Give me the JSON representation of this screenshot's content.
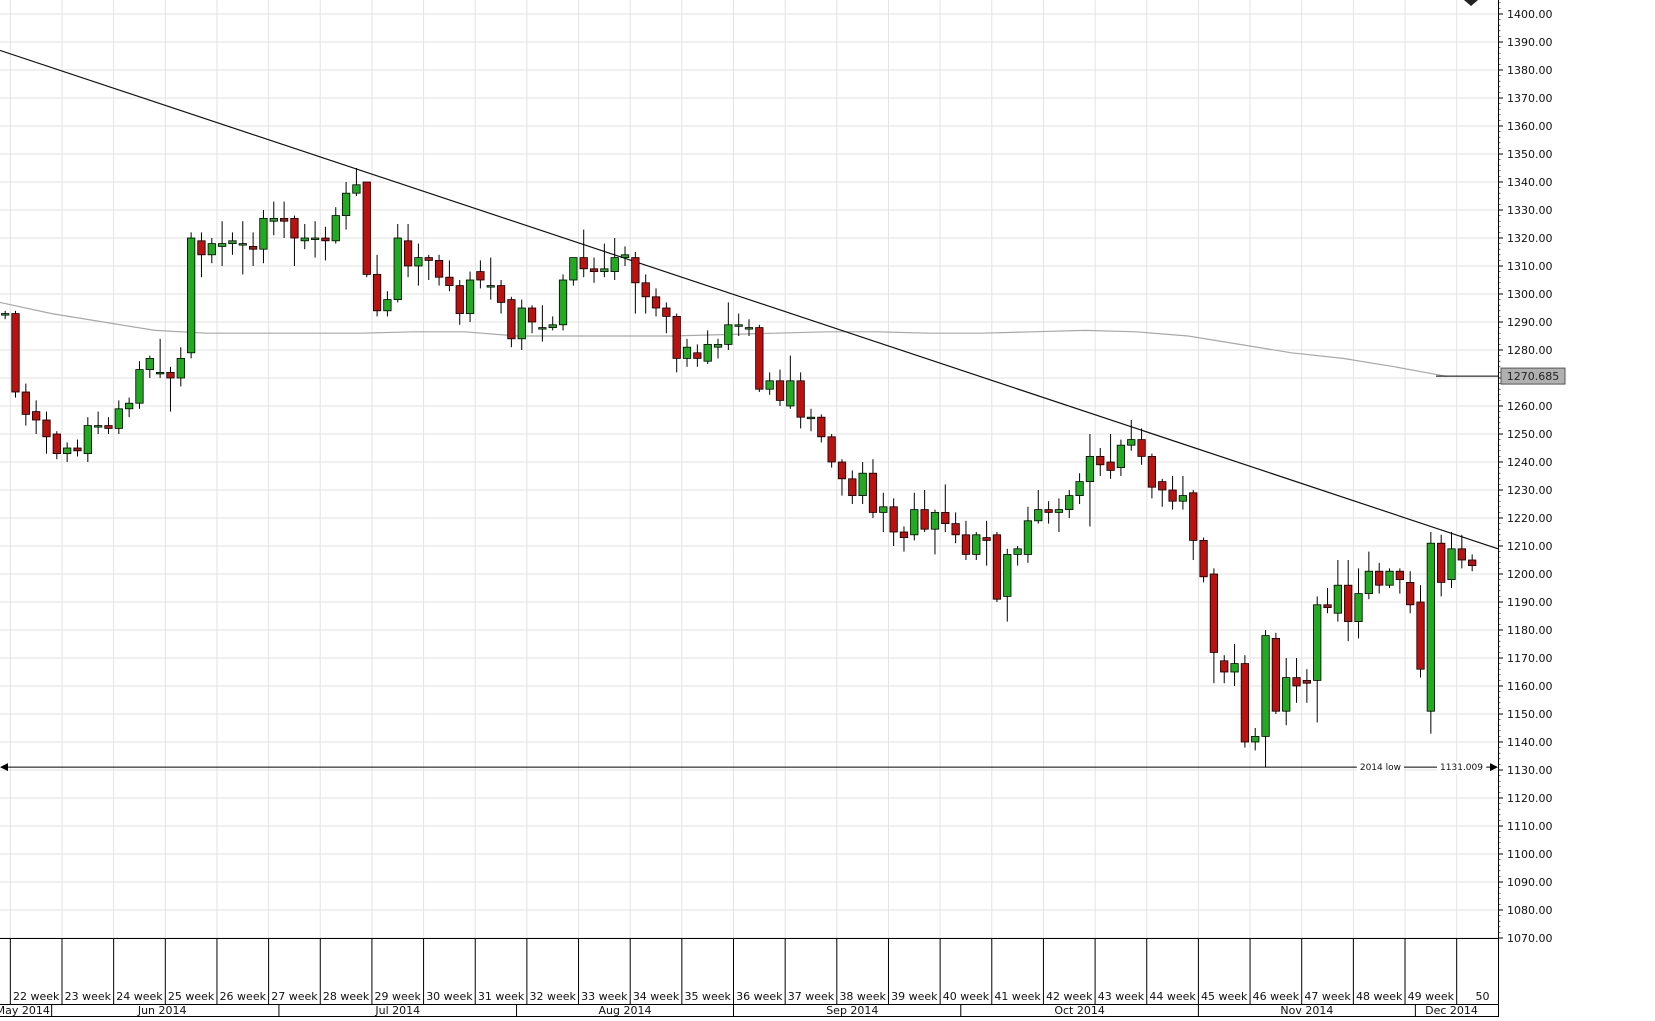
{
  "colors": {
    "background": "#ffffff",
    "grid": "#e3e3e3",
    "bull": "#22aa22",
    "bear": "#bb1111",
    "wick": "#000000",
    "trendline": "#111111",
    "moving_average": "#a8a8a8",
    "price_badge_bg": "#b0b0b0"
  },
  "chart_data": {
    "type": "candlestick",
    "timeframe": "weekly",
    "ylim": [
      1070,
      1405
    ],
    "y_ticks": [
      1070,
      1080,
      1090,
      1100,
      1110,
      1120,
      1130,
      1140,
      1150,
      1160,
      1170,
      1180,
      1190,
      1200,
      1210,
      1220,
      1230,
      1240,
      1250,
      1260,
      1270,
      1280,
      1290,
      1300,
      1310,
      1320,
      1330,
      1340,
      1350,
      1360,
      1370,
      1380,
      1390,
      1400
    ],
    "y_tick_labels": [
      "1070.00",
      "1080.00",
      "1090.00",
      "1100.00",
      "1110.00",
      "1120.00",
      "1130.00",
      "1140.00",
      "1150.00",
      "1160.00",
      "1170.00",
      "1180.00",
      "1190.00",
      "1200.00",
      "1210.00",
      "1220.00",
      "1230.00",
      "1240.00",
      "1250.00",
      "1260.00",
      "1270.00",
      "1280.00",
      "1290.00",
      "1300.00",
      "1310.00",
      "1320.00",
      "1330.00",
      "1340.00",
      "1350.00",
      "1360.00",
      "1370.00",
      "1380.00",
      "1390.00",
      "1400.00"
    ],
    "x_domain": [
      0,
      145
    ],
    "week_labels": [
      "22 week",
      "23 week",
      "24 week",
      "25 week",
      "26 week",
      "27 week",
      "28 week",
      "29 week",
      "30 week",
      "31 week",
      "32 week",
      "33 week",
      "34 week",
      "35 week",
      "36 week",
      "37 week",
      "38 week",
      "39 week",
      "40 week",
      "41 week",
      "42 week",
      "43 week",
      "44 week",
      "45 week",
      "46 week",
      "47 week",
      "48 week",
      "49 week",
      "50"
    ],
    "week_label_x": [
      3.5,
      8.5,
      13.5,
      18.5,
      23.5,
      28.5,
      33.5,
      38.5,
      43.5,
      48.5,
      53.5,
      58.5,
      63.5,
      68.5,
      73.5,
      78.5,
      83.5,
      88.5,
      93.5,
      98.5,
      103.5,
      108.5,
      113.5,
      118.5,
      123.5,
      128.5,
      133.5,
      138.5,
      143.5
    ],
    "month_labels": [
      "May 2014",
      "Jun 2014",
      "Jul 2014",
      "Aug 2014",
      "Sep 2014",
      "Oct 2014",
      "Nov 2014",
      "Dec 2014"
    ],
    "month_label_x": [
      2.2,
      15.7,
      38.5,
      60.5,
      82.5,
      104.5,
      126.5,
      140.5
    ],
    "month_separators_x": [
      5,
      27,
      50,
      71,
      93,
      116,
      137
    ],
    "grid": true,
    "candles": [
      {
        "x": 0,
        "o": 1293,
        "h": 1294,
        "l": 1291,
        "c": 1293
      },
      {
        "x": 1,
        "o": 1293,
        "h": 1294,
        "l": 1263,
        "c": 1265
      },
      {
        "x": 2,
        "o": 1265,
        "h": 1268,
        "l": 1253,
        "c": 1257
      },
      {
        "x": 3,
        "o": 1258,
        "h": 1262,
        "l": 1250,
        "c": 1255
      },
      {
        "x": 4,
        "o": 1255,
        "h": 1258,
        "l": 1243,
        "c": 1249
      },
      {
        "x": 5,
        "o": 1250,
        "h": 1251,
        "l": 1241,
        "c": 1243
      },
      {
        "x": 6,
        "o": 1243,
        "h": 1247,
        "l": 1240,
        "c": 1245
      },
      {
        "x": 7,
        "o": 1245,
        "h": 1248,
        "l": 1242,
        "c": 1244
      },
      {
        "x": 8,
        "o": 1243,
        "h": 1256,
        "l": 1240,
        "c": 1253
      },
      {
        "x": 9,
        "o": 1253,
        "h": 1258,
        "l": 1250,
        "c": 1253
      },
      {
        "x": 10,
        "o": 1253,
        "h": 1256,
        "l": 1250,
        "c": 1252
      },
      {
        "x": 11,
        "o": 1252,
        "h": 1262,
        "l": 1250,
        "c": 1259
      },
      {
        "x": 12,
        "o": 1259,
        "h": 1263,
        "l": 1256,
        "c": 1261
      },
      {
        "x": 13,
        "o": 1261,
        "h": 1276,
        "l": 1259,
        "c": 1273
      },
      {
        "x": 14,
        "o": 1273,
        "h": 1278,
        "l": 1270,
        "c": 1277
      },
      {
        "x": 15,
        "o": 1272,
        "h": 1284,
        "l": 1270,
        "c": 1272
      },
      {
        "x": 16,
        "o": 1272,
        "h": 1274,
        "l": 1258,
        "c": 1270
      },
      {
        "x": 17,
        "o": 1270,
        "h": 1281,
        "l": 1267,
        "c": 1277
      },
      {
        "x": 18,
        "o": 1279,
        "h": 1322,
        "l": 1277,
        "c": 1320
      },
      {
        "x": 19,
        "o": 1319,
        "h": 1322,
        "l": 1306,
        "c": 1314
      },
      {
        "x": 20,
        "o": 1314,
        "h": 1320,
        "l": 1311,
        "c": 1318
      },
      {
        "x": 21,
        "o": 1317,
        "h": 1326,
        "l": 1310,
        "c": 1318
      },
      {
        "x": 22,
        "o": 1318,
        "h": 1322,
        "l": 1314,
        "c": 1319
      },
      {
        "x": 23,
        "o": 1318,
        "h": 1326,
        "l": 1307,
        "c": 1318
      },
      {
        "x": 24,
        "o": 1317,
        "h": 1322,
        "l": 1310,
        "c": 1316
      },
      {
        "x": 25,
        "o": 1316,
        "h": 1330,
        "l": 1311,
        "c": 1327
      },
      {
        "x": 26,
        "o": 1326,
        "h": 1333,
        "l": 1321,
        "c": 1327
      },
      {
        "x": 27,
        "o": 1327,
        "h": 1333,
        "l": 1320,
        "c": 1326
      },
      {
        "x": 28,
        "o": 1327,
        "h": 1328,
        "l": 1310,
        "c": 1320
      },
      {
        "x": 29,
        "o": 1319,
        "h": 1325,
        "l": 1316,
        "c": 1320
      },
      {
        "x": 30,
        "o": 1320,
        "h": 1326,
        "l": 1313,
        "c": 1320
      },
      {
        "x": 31,
        "o": 1320,
        "h": 1324,
        "l": 1312,
        "c": 1319
      },
      {
        "x": 32,
        "o": 1319,
        "h": 1331,
        "l": 1318,
        "c": 1328
      },
      {
        "x": 33,
        "o": 1328,
        "h": 1340,
        "l": 1323,
        "c": 1336
      },
      {
        "x": 34,
        "o": 1336,
        "h": 1345,
        "l": 1335,
        "c": 1339
      },
      {
        "x": 35,
        "o": 1340,
        "h": 1340,
        "l": 1306,
        "c": 1307
      },
      {
        "x": 36,
        "o": 1307,
        "h": 1314,
        "l": 1292,
        "c": 1294
      },
      {
        "x": 37,
        "o": 1294,
        "h": 1301,
        "l": 1292,
        "c": 1298
      },
      {
        "x": 38,
        "o": 1298,
        "h": 1325,
        "l": 1297,
        "c": 1320
      },
      {
        "x": 39,
        "o": 1319,
        "h": 1325,
        "l": 1306,
        "c": 1310
      },
      {
        "x": 40,
        "o": 1310,
        "h": 1318,
        "l": 1303,
        "c": 1313
      },
      {
        "x": 41,
        "o": 1313,
        "h": 1314,
        "l": 1305,
        "c": 1312
      },
      {
        "x": 42,
        "o": 1312,
        "h": 1314,
        "l": 1303,
        "c": 1306
      },
      {
        "x": 43,
        "o": 1306,
        "h": 1312,
        "l": 1301,
        "c": 1303
      },
      {
        "x": 44,
        "o": 1303,
        "h": 1305,
        "l": 1289,
        "c": 1293
      },
      {
        "x": 45,
        "o": 1293,
        "h": 1308,
        "l": 1290,
        "c": 1305
      },
      {
        "x": 46,
        "o": 1308,
        "h": 1312,
        "l": 1302,
        "c": 1305
      },
      {
        "x": 47,
        "o": 1303,
        "h": 1313,
        "l": 1298,
        "c": 1303
      },
      {
        "x": 48,
        "o": 1303,
        "h": 1305,
        "l": 1293,
        "c": 1297
      },
      {
        "x": 49,
        "o": 1298,
        "h": 1299,
        "l": 1281,
        "c": 1284
      },
      {
        "x": 50,
        "o": 1284,
        "h": 1298,
        "l": 1280,
        "c": 1295
      },
      {
        "x": 51,
        "o": 1295,
        "h": 1296,
        "l": 1286,
        "c": 1290
      },
      {
        "x": 52,
        "o": 1288,
        "h": 1296,
        "l": 1283,
        "c": 1288
      },
      {
        "x": 53,
        "o": 1288,
        "h": 1292,
        "l": 1287,
        "c": 1289
      },
      {
        "x": 54,
        "o": 1289,
        "h": 1307,
        "l": 1287,
        "c": 1305
      },
      {
        "x": 55,
        "o": 1305,
        "h": 1313,
        "l": 1303,
        "c": 1313
      },
      {
        "x": 56,
        "o": 1313,
        "h": 1323,
        "l": 1306,
        "c": 1309
      },
      {
        "x": 57,
        "o": 1309,
        "h": 1313,
        "l": 1304,
        "c": 1308
      },
      {
        "x": 58,
        "o": 1308,
        "h": 1318,
        "l": 1306,
        "c": 1309
      },
      {
        "x": 59,
        "o": 1308,
        "h": 1320,
        "l": 1305,
        "c": 1313
      },
      {
        "x": 60,
        "o": 1313,
        "h": 1317,
        "l": 1310,
        "c": 1314
      },
      {
        "x": 61,
        "o": 1313,
        "h": 1315,
        "l": 1293,
        "c": 1304
      },
      {
        "x": 62,
        "o": 1304,
        "h": 1307,
        "l": 1293,
        "c": 1299
      },
      {
        "x": 63,
        "o": 1299,
        "h": 1302,
        "l": 1292,
        "c": 1295
      },
      {
        "x": 64,
        "o": 1295,
        "h": 1297,
        "l": 1286,
        "c": 1292
      },
      {
        "x": 65,
        "o": 1292,
        "h": 1293,
        "l": 1272,
        "c": 1277
      },
      {
        "x": 66,
        "o": 1277,
        "h": 1284,
        "l": 1274,
        "c": 1281
      },
      {
        "x": 67,
        "o": 1279,
        "h": 1282,
        "l": 1274,
        "c": 1277
      },
      {
        "x": 68,
        "o": 1276,
        "h": 1287,
        "l": 1275,
        "c": 1282
      },
      {
        "x": 69,
        "o": 1281,
        "h": 1284,
        "l": 1277,
        "c": 1282
      },
      {
        "x": 70,
        "o": 1282,
        "h": 1297,
        "l": 1280,
        "c": 1289
      },
      {
        "x": 71,
        "o": 1289,
        "h": 1293,
        "l": 1285,
        "c": 1289
      },
      {
        "x": 72,
        "o": 1288,
        "h": 1291,
        "l": 1285,
        "c": 1288
      },
      {
        "x": 73,
        "o": 1288,
        "h": 1289,
        "l": 1265,
        "c": 1266
      },
      {
        "x": 74,
        "o": 1266,
        "h": 1272,
        "l": 1264,
        "c": 1269
      },
      {
        "x": 75,
        "o": 1269,
        "h": 1273,
        "l": 1260,
        "c": 1262
      },
      {
        "x": 76,
        "o": 1260,
        "h": 1278,
        "l": 1259,
        "c": 1269
      },
      {
        "x": 77,
        "o": 1269,
        "h": 1272,
        "l": 1252,
        "c": 1256
      },
      {
        "x": 78,
        "o": 1256,
        "h": 1259,
        "l": 1251,
        "c": 1256
      },
      {
        "x": 79,
        "o": 1256,
        "h": 1257,
        "l": 1247,
        "c": 1249
      },
      {
        "x": 80,
        "o": 1249,
        "h": 1250,
        "l": 1238,
        "c": 1240
      },
      {
        "x": 81,
        "o": 1240,
        "h": 1241,
        "l": 1228,
        "c": 1234
      },
      {
        "x": 82,
        "o": 1234,
        "h": 1237,
        "l": 1225,
        "c": 1228
      },
      {
        "x": 83,
        "o": 1228,
        "h": 1240,
        "l": 1225,
        "c": 1236
      },
      {
        "x": 84,
        "o": 1236,
        "h": 1241,
        "l": 1220,
        "c": 1222
      },
      {
        "x": 85,
        "o": 1222,
        "h": 1229,
        "l": 1215,
        "c": 1224
      },
      {
        "x": 86,
        "o": 1224,
        "h": 1227,
        "l": 1210,
        "c": 1215
      },
      {
        "x": 87,
        "o": 1215,
        "h": 1217,
        "l": 1208,
        "c": 1213
      },
      {
        "x": 88,
        "o": 1214,
        "h": 1229,
        "l": 1212,
        "c": 1223
      },
      {
        "x": 89,
        "o": 1223,
        "h": 1230,
        "l": 1215,
        "c": 1216
      },
      {
        "x": 90,
        "o": 1216,
        "h": 1223,
        "l": 1207,
        "c": 1222
      },
      {
        "x": 91,
        "o": 1222,
        "h": 1232,
        "l": 1215,
        "c": 1218
      },
      {
        "x": 92,
        "o": 1218,
        "h": 1222,
        "l": 1211,
        "c": 1214
      },
      {
        "x": 93,
        "o": 1214,
        "h": 1219,
        "l": 1205,
        "c": 1207
      },
      {
        "x": 94,
        "o": 1207,
        "h": 1215,
        "l": 1205,
        "c": 1214
      },
      {
        "x": 95,
        "o": 1213,
        "h": 1219,
        "l": 1203,
        "c": 1212
      },
      {
        "x": 96,
        "o": 1214,
        "h": 1215,
        "l": 1190,
        "c": 1191
      },
      {
        "x": 97,
        "o": 1192,
        "h": 1209,
        "l": 1183,
        "c": 1207
      },
      {
        "x": 98,
        "o": 1207,
        "h": 1210,
        "l": 1203,
        "c": 1209
      },
      {
        "x": 99,
        "o": 1207,
        "h": 1224,
        "l": 1204,
        "c": 1219
      },
      {
        "x": 100,
        "o": 1219,
        "h": 1230,
        "l": 1218,
        "c": 1223
      },
      {
        "x": 101,
        "o": 1223,
        "h": 1226,
        "l": 1218,
        "c": 1222
      },
      {
        "x": 102,
        "o": 1222,
        "h": 1227,
        "l": 1215,
        "c": 1223
      },
      {
        "x": 103,
        "o": 1223,
        "h": 1230,
        "l": 1220,
        "c": 1228
      },
      {
        "x": 104,
        "o": 1228,
        "h": 1236,
        "l": 1225,
        "c": 1233
      },
      {
        "x": 105,
        "o": 1233,
        "h": 1250,
        "l": 1217,
        "c": 1242
      },
      {
        "x": 106,
        "o": 1242,
        "h": 1245,
        "l": 1235,
        "c": 1239
      },
      {
        "x": 107,
        "o": 1240,
        "h": 1250,
        "l": 1234,
        "c": 1237
      },
      {
        "x": 108,
        "o": 1238,
        "h": 1248,
        "l": 1235,
        "c": 1246
      },
      {
        "x": 109,
        "o": 1246,
        "h": 1255,
        "l": 1244,
        "c": 1248
      },
      {
        "x": 110,
        "o": 1248,
        "h": 1252,
        "l": 1239,
        "c": 1242
      },
      {
        "x": 111,
        "o": 1242,
        "h": 1243,
        "l": 1227,
        "c": 1231
      },
      {
        "x": 112,
        "o": 1233,
        "h": 1234,
        "l": 1224,
        "c": 1230
      },
      {
        "x": 113,
        "o": 1230,
        "h": 1235,
        "l": 1223,
        "c": 1226
      },
      {
        "x": 114,
        "o": 1226,
        "h": 1235,
        "l": 1223,
        "c": 1228
      },
      {
        "x": 115,
        "o": 1229,
        "h": 1230,
        "l": 1205,
        "c": 1212
      },
      {
        "x": 116,
        "o": 1212,
        "h": 1213,
        "l": 1197,
        "c": 1199
      },
      {
        "x": 117,
        "o": 1200,
        "h": 1202,
        "l": 1161,
        "c": 1172
      },
      {
        "x": 118,
        "o": 1169,
        "h": 1171,
        "l": 1161,
        "c": 1165
      },
      {
        "x": 119,
        "o": 1165,
        "h": 1175,
        "l": 1160,
        "c": 1168
      },
      {
        "x": 120,
        "o": 1168,
        "h": 1171,
        "l": 1138,
        "c": 1140
      },
      {
        "x": 121,
        "o": 1140,
        "h": 1145,
        "l": 1137,
        "c": 1142
      },
      {
        "x": 122,
        "o": 1142,
        "h": 1180,
        "l": 1131,
        "c": 1178
      },
      {
        "x": 123,
        "o": 1177,
        "h": 1179,
        "l": 1150,
        "c": 1151
      },
      {
        "x": 124,
        "o": 1151,
        "h": 1170,
        "l": 1146,
        "c": 1163
      },
      {
        "x": 125,
        "o": 1163,
        "h": 1170,
        "l": 1154,
        "c": 1160
      },
      {
        "x": 126,
        "o": 1162,
        "h": 1166,
        "l": 1154,
        "c": 1161
      },
      {
        "x": 127,
        "o": 1162,
        "h": 1192,
        "l": 1147,
        "c": 1189
      },
      {
        "x": 128,
        "o": 1189,
        "h": 1195,
        "l": 1186,
        "c": 1188
      },
      {
        "x": 129,
        "o": 1186,
        "h": 1205,
        "l": 1183,
        "c": 1196
      },
      {
        "x": 130,
        "o": 1196,
        "h": 1205,
        "l": 1176,
        "c": 1183
      },
      {
        "x": 131,
        "o": 1183,
        "h": 1202,
        "l": 1177,
        "c": 1193
      },
      {
        "x": 132,
        "o": 1193,
        "h": 1208,
        "l": 1191,
        "c": 1201
      },
      {
        "x": 133,
        "o": 1201,
        "h": 1204,
        "l": 1193,
        "c": 1196
      },
      {
        "x": 134,
        "o": 1196,
        "h": 1202,
        "l": 1195,
        "c": 1201
      },
      {
        "x": 135,
        "o": 1201,
        "h": 1202,
        "l": 1193,
        "c": 1198
      },
      {
        "x": 136,
        "o": 1197,
        "h": 1201,
        "l": 1186,
        "c": 1189
      },
      {
        "x": 137,
        "o": 1190,
        "h": 1196,
        "l": 1163,
        "c": 1166
      },
      {
        "x": 138,
        "o": 1151,
        "h": 1215,
        "l": 1143,
        "c": 1211
      },
      {
        "x": 139,
        "o": 1211,
        "h": 1214,
        "l": 1192,
        "c": 1197
      },
      {
        "x": 140,
        "o": 1198,
        "h": 1215,
        "l": 1195,
        "c": 1209
      },
      {
        "x": 141,
        "o": 1209,
        "h": 1214,
        "l": 1202,
        "c": 1205
      },
      {
        "x": 142,
        "o": 1205,
        "h": 1207,
        "l": 1201,
        "c": 1203
      }
    ],
    "moving_average": [
      [
        0,
        1297
      ],
      [
        5,
        1293
      ],
      [
        10,
        1290
      ],
      [
        15,
        1287
      ],
      [
        20,
        1286
      ],
      [
        25,
        1286
      ],
      [
        30,
        1286
      ],
      [
        35,
        1286
      ],
      [
        40,
        1286.5
      ],
      [
        45,
        1286.5
      ],
      [
        50,
        1285
      ],
      [
        55,
        1285
      ],
      [
        60,
        1285
      ],
      [
        65,
        1285
      ],
      [
        70,
        1285.5
      ],
      [
        75,
        1286
      ],
      [
        80,
        1286.5
      ],
      [
        85,
        1286.5
      ],
      [
        90,
        1286
      ],
      [
        95,
        1286
      ],
      [
        100,
        1286.5
      ],
      [
        105,
        1287
      ],
      [
        110,
        1286.5
      ],
      [
        115,
        1285
      ],
      [
        120,
        1282
      ],
      [
        125,
        1279
      ],
      [
        130,
        1277
      ],
      [
        135,
        1274
      ],
      [
        140,
        1270.6
      ]
    ],
    "trendline": {
      "x1": 0,
      "y1": 1387,
      "x2": 145,
      "y2": 1209
    },
    "support_line": {
      "value": 1131.009,
      "label": "2014 low",
      "value_label": "1131.009"
    },
    "current_value_badge": {
      "value": 1270.685,
      "label": "1270.685"
    }
  }
}
